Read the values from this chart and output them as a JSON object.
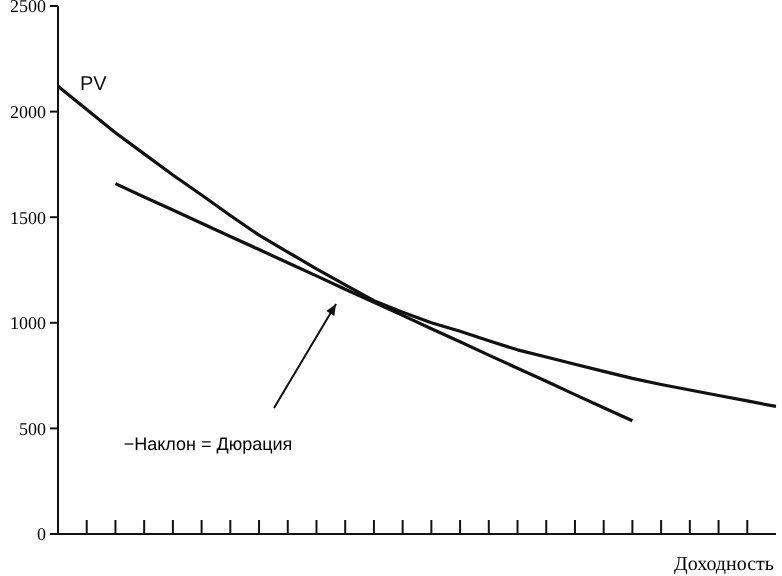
{
  "chart_data": {
    "type": "line",
    "xlabel": "Доходность",
    "tick_labels": "y",
    "grid": false,
    "marker": "none",
    "line_style": "solid",
    "categories": [
      null,
      null,
      null,
      null,
      null,
      null,
      null,
      null,
      null,
      null,
      null,
      null,
      null,
      null,
      null,
      null,
      null,
      null,
      null,
      null,
      null,
      null,
      null,
      null,
      null,
      null
    ],
    "ylim": [
      0,
      2500
    ],
    "yticks": [
      0,
      500,
      1000,
      1500,
      2000,
      2500
    ],
    "series": [
      {
        "name": "PV",
        "color": "#111111",
        "values": [
          2120,
          2010,
          1900,
          1800,
          1700,
          1605,
          1508,
          1415,
          1335,
          1255,
          1180,
          1105,
          1050,
          1000,
          960,
          915,
          872,
          838,
          804,
          770,
          737,
          708,
          682,
          656,
          630,
          604
        ]
      },
      {
        "color": "#111111",
        "values": [
          null,
          null,
          1659,
          1596,
          1534,
          1471,
          1409,
          1347,
          1284,
          1222,
          1159,
          1097,
          1035,
          972,
          910,
          847,
          785,
          723,
          660,
          598,
          536,
          null,
          null,
          null,
          null,
          null
        ]
      }
    ],
    "annotations": [
      "−Наклон = Дюрация"
    ]
  }
}
